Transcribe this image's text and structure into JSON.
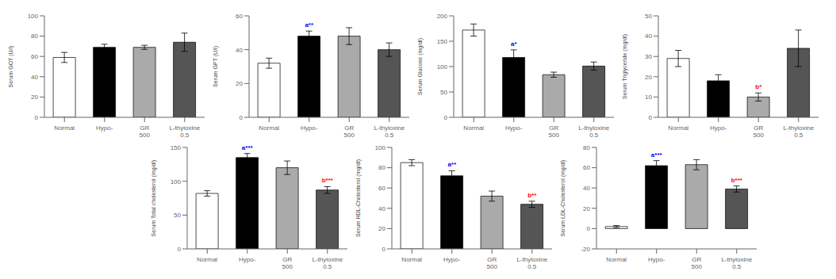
{
  "chart_data": [
    {
      "type": "bar",
      "ylabel": "Serum GOT (U/l)",
      "categories": [
        "Normal",
        "Hypo-",
        "GR 500",
        "L-thyloxine 0.5"
      ],
      "values": [
        59,
        69,
        69,
        74
      ],
      "errors": [
        5,
        3,
        2,
        9
      ],
      "colors": [
        "#ffffff",
        "#000000",
        "#aaaaaa",
        "#555555"
      ],
      "ylim": [
        0,
        100
      ],
      "yticks": [
        0,
        20,
        40,
        60,
        80,
        100
      ],
      "grid": false,
      "annotations": []
    },
    {
      "type": "bar",
      "ylabel": "Serum GPT (U/l)",
      "categories": [
        "Normal",
        "Hypo-",
        "GR 500",
        "L-thyloxine 0.5"
      ],
      "values": [
        32,
        48,
        48,
        40
      ],
      "errors": [
        3,
        3,
        5,
        4
      ],
      "colors": [
        "#ffffff",
        "#000000",
        "#aaaaaa",
        "#555555"
      ],
      "ylim": [
        0,
        60
      ],
      "yticks": [
        0,
        20,
        40,
        60
      ],
      "grid": false,
      "annotations": [
        {
          "category": "Hypo-",
          "text": "a**",
          "color": "#0000ff"
        }
      ]
    },
    {
      "type": "bar",
      "ylabel": "Serum Glucose (mg/dl)",
      "categories": [
        "Normal",
        "Hypo-",
        "GR 500",
        "L-thyloxine 0.5"
      ],
      "values": [
        172,
        118,
        84,
        101
      ],
      "errors": [
        12,
        15,
        5,
        8
      ],
      "colors": [
        "#ffffff",
        "#000000",
        "#aaaaaa",
        "#555555"
      ],
      "ylim": [
        0,
        200
      ],
      "yticks": [
        0,
        50,
        100,
        150,
        200
      ],
      "grid": false,
      "annotations": [
        {
          "category": "Hypo-",
          "text": "a*",
          "color": "#0000ff"
        }
      ]
    },
    {
      "type": "bar",
      "ylabel": "Serum Triglyceride (mg/dl)",
      "categories": [
        "Normal",
        "Hypo-",
        "GR 500",
        "L-thyloxine 0.5"
      ],
      "values": [
        29,
        18,
        10,
        34
      ],
      "errors": [
        4,
        3,
        2,
        9
      ],
      "colors": [
        "#ffffff",
        "#000000",
        "#aaaaaa",
        "#555555"
      ],
      "ylim": [
        0,
        50
      ],
      "yticks": [
        0,
        10,
        20,
        30,
        40,
        50
      ],
      "grid": false,
      "annotations": [
        {
          "category": "GR 500",
          "text": "b*",
          "color": "#ff0000"
        }
      ]
    },
    {
      "type": "bar",
      "ylabel": "Serum Total cholesterol (mg/dl)",
      "categories": [
        "Normal",
        "Hypo-",
        "GR 500",
        "L-thyloxine 0.5"
      ],
      "values": [
        82,
        135,
        120,
        87
      ],
      "errors": [
        4,
        6,
        10,
        5
      ],
      "colors": [
        "#ffffff",
        "#000000",
        "#aaaaaa",
        "#555555"
      ],
      "ylim": [
        0,
        150
      ],
      "yticks": [
        0,
        50,
        100,
        150
      ],
      "grid": false,
      "annotations": [
        {
          "category": "Hypo-",
          "text": "a***",
          "color": "#0000ff"
        },
        {
          "category": "L-thyloxine 0.5",
          "text": "b***",
          "color": "#ff0000"
        }
      ]
    },
    {
      "type": "bar",
      "ylabel": "Serum HDL-Cholesterol (mg/dl)",
      "categories": [
        "Normal",
        "Hypo-",
        "GR 500",
        "L-thyloxine 0.5"
      ],
      "values": [
        85,
        72,
        52,
        44
      ],
      "errors": [
        3,
        5,
        5,
        3
      ],
      "colors": [
        "#ffffff",
        "#000000",
        "#aaaaaa",
        "#555555"
      ],
      "ylim": [
        0,
        100
      ],
      "yticks": [
        0,
        20,
        40,
        60,
        80,
        100
      ],
      "grid": false,
      "annotations": [
        {
          "category": "Hypo-",
          "text": "a**",
          "color": "#0000ff"
        },
        {
          "category": "L-thyloxine 0.5",
          "text": "b**",
          "color": "#ff0000"
        }
      ]
    },
    {
      "type": "bar",
      "ylabel": "Serum LDL-Cholesterol (mg/dl)",
      "categories": [
        "Normal",
        "Hypo-",
        "GR 500",
        "L-thyloxine 0.5"
      ],
      "values": [
        2,
        62,
        63,
        39
      ],
      "errors": [
        1,
        5,
        5,
        3
      ],
      "colors": [
        "#ffffff",
        "#000000",
        "#aaaaaa",
        "#555555"
      ],
      "ylim": [
        -20,
        80
      ],
      "yticks": [
        -20,
        0,
        20,
        40,
        60,
        80
      ],
      "grid": false,
      "annotations": [
        {
          "category": "Hypo-",
          "text": "a***",
          "color": "#0000ff"
        },
        {
          "category": "L-thyloxine 0.5",
          "text": "b***",
          "color": "#ff0000"
        }
      ]
    }
  ]
}
